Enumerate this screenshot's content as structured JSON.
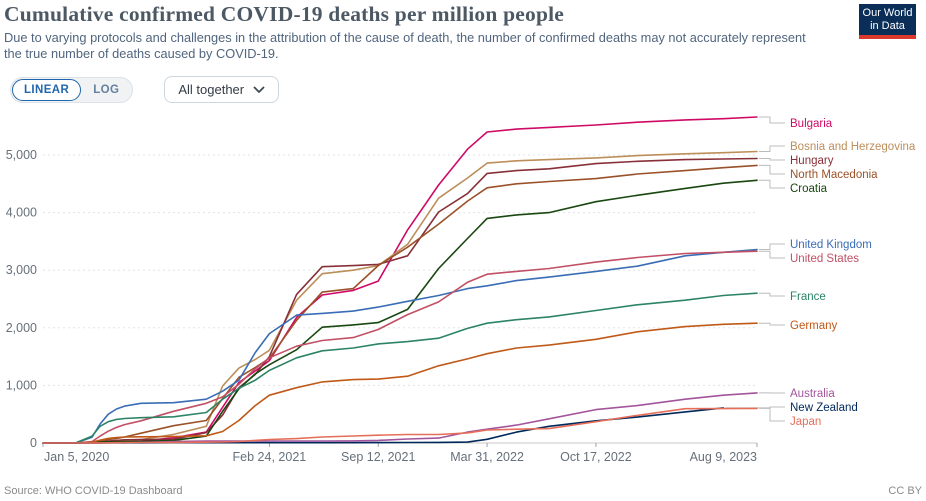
{
  "header": {
    "title": "Cumulative confirmed COVID-19 deaths per million people",
    "subtitle": "Due to varying protocols and challenges in the attribution of the cause of death, the number of confirmed deaths may not accurately represent the true number of deaths caused by COVID-19.",
    "logo": {
      "line1": "Our World",
      "line2": "in Data",
      "bg_color": "#0b2e58",
      "accent_color": "#d93a2b"
    }
  },
  "controls": {
    "scale_toggle": {
      "options": [
        "LINEAR",
        "LOG"
      ],
      "selected": "LINEAR",
      "active_color": "#2166ac"
    },
    "entity_dropdown": {
      "value": "All together"
    }
  },
  "footer": {
    "source": "Source: WHO COVID-19 Dashboard",
    "license": "CC BY"
  },
  "chart_data": {
    "type": "line",
    "title": "Cumulative confirmed COVID-19 deaths per million people",
    "ylabel": "",
    "xlabel": "",
    "grid": "dashed-horizontal",
    "legend_position": "right",
    "y_axis": {
      "range": [
        0,
        5800
      ],
      "ticks": [
        0,
        1000,
        2000,
        3000,
        4000,
        5000
      ],
      "tick_labels": [
        "0",
        "1,000",
        "2,000",
        "3,000",
        "4,000",
        "5,000"
      ]
    },
    "x_axis": {
      "unit": "days since Jan 5, 2020",
      "range_days": [
        0,
        1312
      ],
      "tick_days": [
        0,
        416,
        616,
        816,
        1016,
        1312
      ],
      "tick_labels": [
        "Jan 5, 2020",
        "Feb 24, 2021",
        "Sep 12, 2021",
        "Mar 31, 2022",
        "Oct 17, 2022",
        "Aug 9, 2023"
      ]
    },
    "x_days": [
      0,
      60,
      90,
      105,
      120,
      135,
      150,
      180,
      240,
      300,
      330,
      360,
      390,
      416,
      466,
      513,
      570,
      616,
      670,
      727,
      780,
      816,
      870,
      930,
      1016,
      1092,
      1180,
      1250,
      1312
    ],
    "series": [
      {
        "name": "Bulgaria",
        "color": "#cf0a66",
        "values": [
          0,
          0,
          5,
          8,
          13,
          18,
          25,
          35,
          90,
          190,
          620,
          1050,
          1250,
          1430,
          2180,
          2570,
          2650,
          2810,
          3700,
          4480,
          5100,
          5400,
          5450,
          5480,
          5520,
          5570,
          5610,
          5630,
          5660
        ]
      },
      {
        "name": "Bosnia and Herzegovina",
        "color": "#bc8e5a",
        "values": [
          0,
          0,
          12,
          20,
          30,
          38,
          45,
          60,
          150,
          290,
          990,
          1300,
          1450,
          1610,
          2480,
          2940,
          3000,
          3080,
          3450,
          4250,
          4600,
          4860,
          4900,
          4920,
          4950,
          4990,
          5020,
          5040,
          5060
        ]
      },
      {
        "name": "Hungary",
        "color": "#883039",
        "values": [
          0,
          0,
          7,
          20,
          35,
          45,
          55,
          60,
          64,
          180,
          485,
          960,
          1190,
          1500,
          2580,
          3060,
          3080,
          3100,
          3250,
          4010,
          4330,
          4680,
          4730,
          4760,
          4850,
          4890,
          4920,
          4930,
          4940
        ]
      },
      {
        "name": "North Macedonia",
        "color": "#9a5129",
        "values": [
          0,
          0,
          14,
          30,
          60,
          80,
          105,
          170,
          300,
          390,
          770,
          1140,
          1310,
          1470,
          2130,
          2620,
          2680,
          3080,
          3400,
          3800,
          4200,
          4430,
          4500,
          4540,
          4590,
          4670,
          4730,
          4780,
          4820
        ]
      },
      {
        "name": "Croatia",
        "color": "#18470f",
        "values": [
          0,
          0,
          8,
          15,
          20,
          23,
          25,
          28,
          45,
          120,
          550,
          940,
          1200,
          1360,
          1620,
          2010,
          2050,
          2090,
          2320,
          3030,
          3550,
          3900,
          3960,
          4000,
          4190,
          4300,
          4420,
          4510,
          4560
        ]
      },
      {
        "name": "United Kingdom",
        "color": "#3a6db5",
        "values": [
          0,
          0,
          100,
          330,
          500,
          590,
          640,
          690,
          700,
          760,
          900,
          1090,
          1570,
          1900,
          2220,
          2250,
          2290,
          2360,
          2460,
          2560,
          2680,
          2730,
          2820,
          2880,
          2980,
          3070,
          3250,
          3310,
          3360
        ]
      },
      {
        "name": "United States",
        "color": "#c15065",
        "values": [
          0,
          0,
          25,
          120,
          205,
          270,
          320,
          385,
          550,
          690,
          800,
          1020,
          1290,
          1480,
          1680,
          1780,
          1830,
          1970,
          2230,
          2450,
          2790,
          2930,
          2980,
          3030,
          3140,
          3220,
          3290,
          3310,
          3330
        ]
      },
      {
        "name": "France",
        "color": "#2c8465",
        "values": [
          0,
          1,
          120,
          290,
          370,
          410,
          425,
          440,
          455,
          530,
          760,
          950,
          1090,
          1260,
          1480,
          1600,
          1650,
          1720,
          1760,
          1820,
          1990,
          2080,
          2140,
          2190,
          2300,
          2400,
          2480,
          2560,
          2600
        ]
      },
      {
        "name": "Germany",
        "color": "#c05917",
        "values": [
          0,
          0,
          15,
          50,
          80,
          95,
          105,
          108,
          112,
          125,
          200,
          390,
          650,
          830,
          960,
          1060,
          1100,
          1110,
          1160,
          1340,
          1460,
          1550,
          1650,
          1700,
          1800,
          1930,
          2020,
          2060,
          2080
        ]
      },
      {
        "name": "Australia",
        "color": "#a2559c",
        "values": [
          0,
          0,
          1,
          3,
          4,
          4,
          4,
          10,
          26,
          35,
          35,
          35,
          35,
          35,
          35,
          35,
          36,
          45,
          70,
          85,
          190,
          240,
          310,
          420,
          580,
          650,
          760,
          830,
          870
        ]
      },
      {
        "name": "New Zealand",
        "color": "#00295b",
        "values": [
          0,
          0,
          0,
          2,
          4,
          4,
          4,
          4,
          5,
          5,
          5,
          5,
          5,
          5,
          5,
          5,
          6,
          7,
          8,
          10,
          16,
          65,
          190,
          290,
          385,
          450,
          540,
          610,
          null
        ]
      },
      {
        "name": "Japan",
        "color": "#e56e5a",
        "values": [
          0,
          0,
          1,
          2,
          4,
          6,
          7,
          8,
          10,
          14,
          17,
          26,
          45,
          60,
          77,
          105,
          122,
          135,
          147,
          148,
          175,
          225,
          240,
          250,
          370,
          480,
          595,
          598,
          600
        ]
      }
    ]
  }
}
